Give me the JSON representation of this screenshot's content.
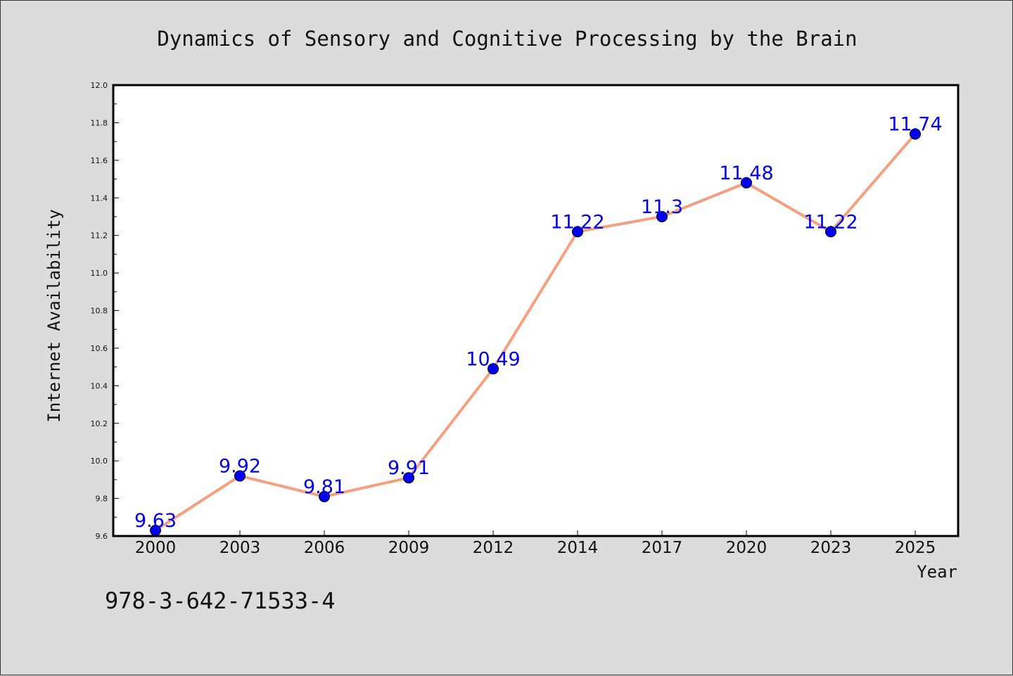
{
  "chart_data": {
    "type": "line",
    "title": "Dynamics of Sensory and Cognitive Processing by the Brain",
    "xlabel": "Year",
    "ylabel": "Internet Availability",
    "categories": [
      "2000",
      "2003",
      "2006",
      "2009",
      "2012",
      "2014",
      "2017",
      "2020",
      "2023",
      "2025"
    ],
    "series": [
      {
        "values": [
          9.63,
          9.92,
          9.81,
          9.91,
          10.49,
          11.22,
          11.3,
          11.48,
          11.22,
          11.74
        ],
        "labels": [
          "9.63",
          "9.92",
          "9.81",
          "9.91",
          "10.49",
          "11.22",
          "11.3",
          "11.48",
          "11.22",
          "11.74"
        ],
        "line_color": "#f5a07e",
        "marker_color": "#0000ee"
      }
    ],
    "ylim": [
      9.6,
      12.0
    ],
    "yticks": [
      "9.6",
      "9.8",
      "10.0",
      "10.2",
      "10.4",
      "10.6",
      "10.8",
      "11.0",
      "11.2",
      "11.4",
      "11.6",
      "11.8",
      "12.0"
    ],
    "grid": false,
    "legend": "none"
  },
  "footer": {
    "text": "978-3-642-71533-4"
  },
  "colors": {
    "background": "#dcdcdc",
    "plot_background": "#ffffff",
    "label_color": "#0000ee"
  }
}
